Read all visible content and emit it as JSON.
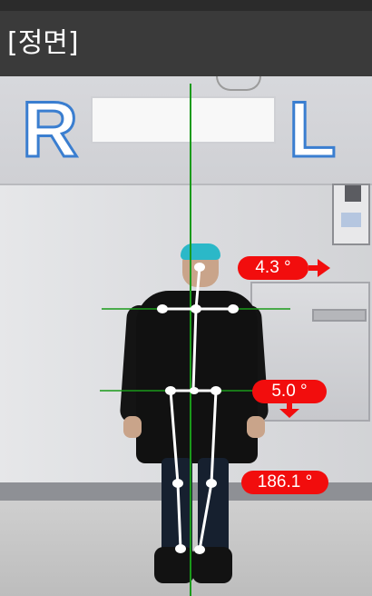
{
  "header": {
    "title": "[정면]"
  },
  "overlay": {
    "side_labels": {
      "right": "R",
      "left": "L"
    },
    "measurements": {
      "shoulder_angle": "4.3 °",
      "pelvis_angle": "5.0 °",
      "leg_angle": "186.1 °"
    },
    "indicator_colors": {
      "badge": "#f20d0d",
      "guide_line": "#1a9a1a",
      "skeleton": "#ffffff"
    },
    "icons": {
      "shoulder_arrow": "arrow-right-icon",
      "pelvis_arrow": "arrow-down-icon"
    }
  }
}
